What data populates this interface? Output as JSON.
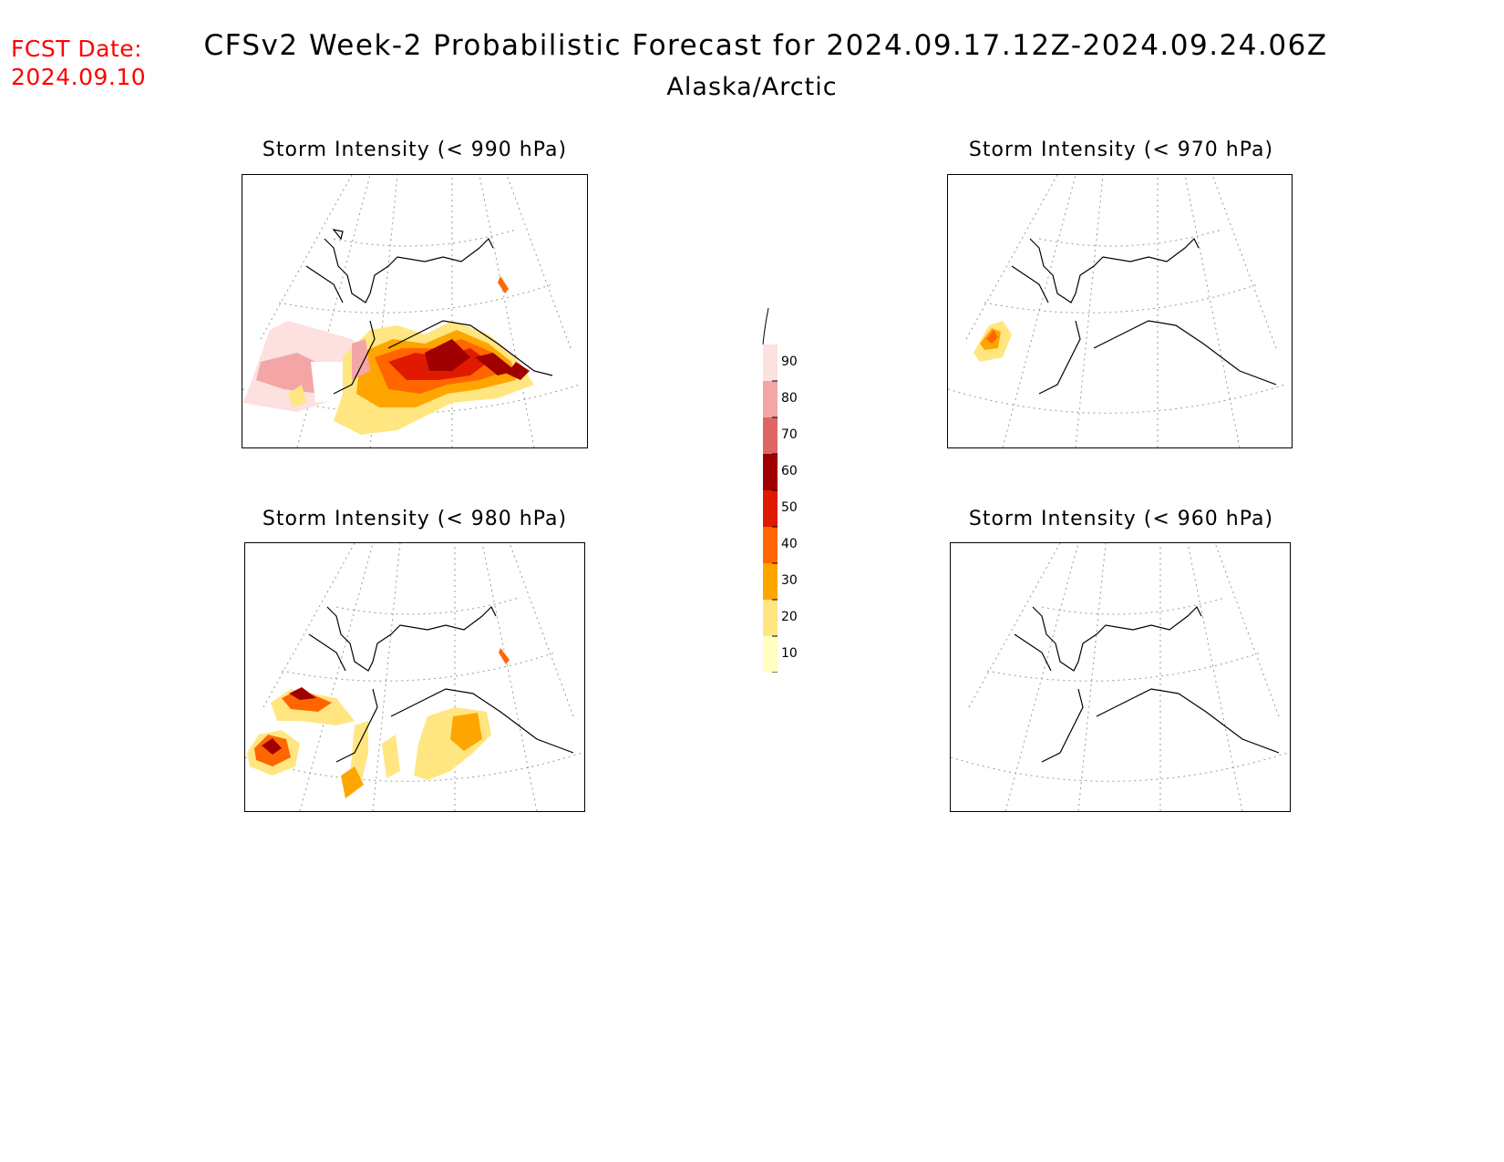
{
  "header": {
    "fcst_label": "FCST Date:",
    "fcst_date": "2024.09.10",
    "title": "CFSv2 Week-2 Probabilistic Forecast for 2024.09.17.12Z-2024.09.24.06Z",
    "subtitle": "Alaska/Arctic"
  },
  "panels": [
    {
      "title": "Storm Intensity (< 990 hPa)"
    },
    {
      "title": "Storm Intensity (< 970 hPa)"
    },
    {
      "title": "Storm Intensity (< 980 hPa)"
    },
    {
      "title": "Storm Intensity (< 960 hPa)"
    }
  ],
  "colorbar": {
    "levels": [
      "10",
      "20",
      "30",
      "40",
      "50",
      "60",
      "70",
      "80",
      "90"
    ],
    "colors": [
      "#ffffc0",
      "#ffe680",
      "#ffa500",
      "#ff6600",
      "#e01a00",
      "#a00000",
      "#e06666",
      "#f4a6a6",
      "#fde0e0"
    ]
  }
}
